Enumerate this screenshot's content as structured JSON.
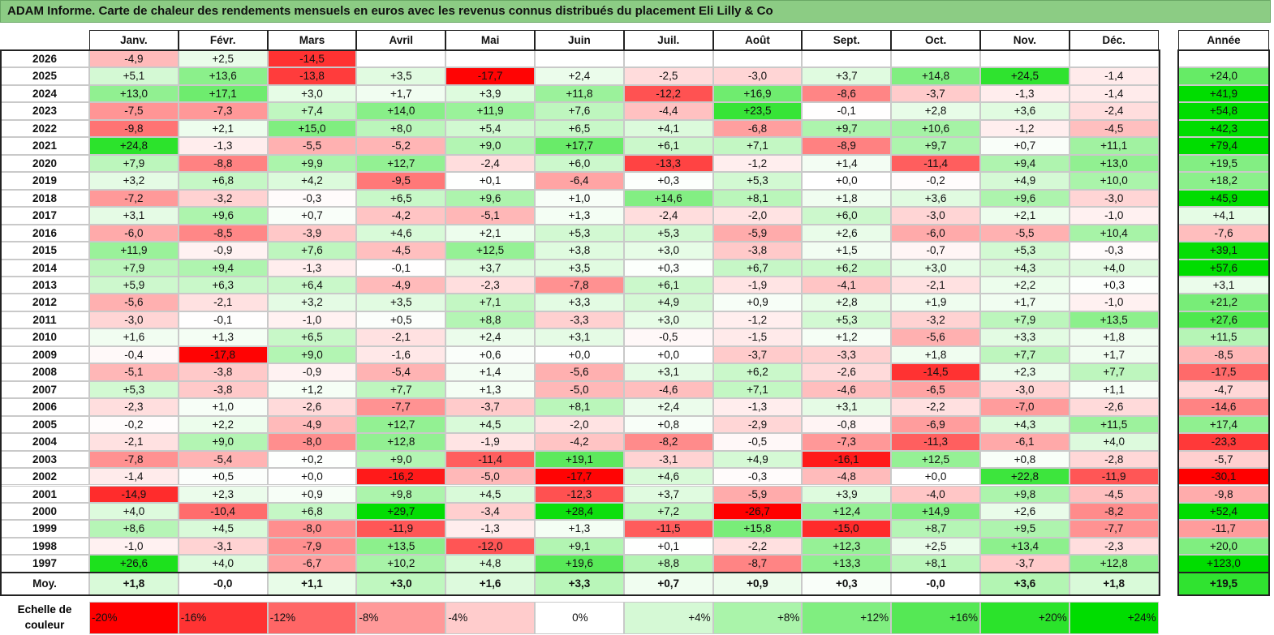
{
  "title": "ADAM Informe. Carte de chaleur des rendements mensuels en euros avec les revenus connus distribués du placement Eli Lilly & Co",
  "chart_data": {
    "type": "heatmap",
    "title": "ADAM Informe. Carte de chaleur des rendements mensuels en euros avec les revenus connus distribués du placement Eli Lilly & Co",
    "months": [
      "Janv.",
      "Févr.",
      "Mars",
      "Avril",
      "Mai",
      "Juin",
      "Juil.",
      "Août",
      "Sept.",
      "Oct.",
      "Nov.",
      "Déc."
    ],
    "year_header": "Année",
    "rows": [
      {
        "year": "2026",
        "values": [
          "-4,9",
          "+2,5",
          "-14,5",
          "",
          "",
          "",
          "",
          "",
          "",
          "",
          "",
          ""
        ],
        "annual": ""
      },
      {
        "year": "2025",
        "values": [
          "+5,1",
          "+13,6",
          "-13,8",
          "+3,5",
          "-17,7",
          "+2,4",
          "-2,5",
          "-3,0",
          "+3,7",
          "+14,8",
          "+24,5",
          "-1,4"
        ],
        "annual": "+24,0"
      },
      {
        "year": "2024",
        "values": [
          "+13,0",
          "+17,1",
          "+3,0",
          "+1,7",
          "+3,9",
          "+11,8",
          "-12,2",
          "+16,9",
          "-8,6",
          "-3,7",
          "-1,3",
          "-1,4"
        ],
        "annual": "+41,9"
      },
      {
        "year": "2023",
        "values": [
          "-7,5",
          "-7,3",
          "+7,4",
          "+14,0",
          "+11,9",
          "+7,6",
          "-4,4",
          "+23,5",
          "-0,1",
          "+2,8",
          "+3,6",
          "-2,4"
        ],
        "annual": "+54,8"
      },
      {
        "year": "2022",
        "values": [
          "-9,8",
          "+2,1",
          "+15,0",
          "+8,0",
          "+5,4",
          "+6,5",
          "+4,1",
          "-6,8",
          "+9,7",
          "+10,6",
          "-1,2",
          "-4,5"
        ],
        "annual": "+42,3"
      },
      {
        "year": "2021",
        "values": [
          "+24,8",
          "-1,3",
          "-5,5",
          "-5,2",
          "+9,0",
          "+17,7",
          "+6,1",
          "+7,1",
          "-8,9",
          "+9,7",
          "+0,7",
          "+11,1"
        ],
        "annual": "+79,4"
      },
      {
        "year": "2020",
        "values": [
          "+7,9",
          "-8,8",
          "+9,9",
          "+12,7",
          "-2,4",
          "+6,0",
          "-13,3",
          "-1,2",
          "+1,4",
          "-11,4",
          "+9,4",
          "+13,0"
        ],
        "annual": "+19,5"
      },
      {
        "year": "2019",
        "values": [
          "+3,2",
          "+6,8",
          "+4,2",
          "-9,5",
          "+0,1",
          "-6,4",
          "+0,3",
          "+5,3",
          "+0,0",
          "-0,2",
          "+4,9",
          "+10,0"
        ],
        "annual": "+18,2"
      },
      {
        "year": "2018",
        "values": [
          "-7,2",
          "-3,2",
          "-0,3",
          "+6,5",
          "+9,6",
          "+1,0",
          "+14,6",
          "+8,1",
          "+1,8",
          "+3,6",
          "+9,6",
          "-3,0"
        ],
        "annual": "+45,9"
      },
      {
        "year": "2017",
        "values": [
          "+3,1",
          "+9,6",
          "+0,7",
          "-4,2",
          "-5,1",
          "+1,3",
          "-2,4",
          "-2,0",
          "+6,0",
          "-3,0",
          "+2,1",
          "-1,0"
        ],
        "annual": "+4,1"
      },
      {
        "year": "2016",
        "values": [
          "-6,0",
          "-8,5",
          "-3,9",
          "+4,6",
          "+2,1",
          "+5,3",
          "+5,3",
          "-5,9",
          "+2,6",
          "-6,0",
          "-5,5",
          "+10,4"
        ],
        "annual": "-7,6"
      },
      {
        "year": "2015",
        "values": [
          "+11,9",
          "-0,9",
          "+7,6",
          "-4,5",
          "+12,5",
          "+3,8",
          "+3,0",
          "-3,8",
          "+1,5",
          "-0,7",
          "+5,3",
          "-0,3"
        ],
        "annual": "+39,1"
      },
      {
        "year": "2014",
        "values": [
          "+7,9",
          "+9,4",
          "-1,3",
          "-0,1",
          "+3,7",
          "+3,5",
          "+0,3",
          "+6,7",
          "+6,2",
          "+3,0",
          "+4,3",
          "+4,0"
        ],
        "annual": "+57,6"
      },
      {
        "year": "2013",
        "values": [
          "+5,9",
          "+6,3",
          "+6,4",
          "-4,9",
          "-2,3",
          "-7,8",
          "+6,1",
          "-1,9",
          "-4,1",
          "-2,1",
          "+2,2",
          "+0,3"
        ],
        "annual": "+3,1"
      },
      {
        "year": "2012",
        "values": [
          "-5,6",
          "-2,1",
          "+3,2",
          "+3,5",
          "+7,1",
          "+3,3",
          "+4,9",
          "+0,9",
          "+2,8",
          "+1,9",
          "+1,7",
          "-1,0"
        ],
        "annual": "+21,2"
      },
      {
        "year": "2011",
        "values": [
          "-3,0",
          "-0,1",
          "-1,0",
          "+0,5",
          "+8,8",
          "-3,3",
          "+3,0",
          "-1,2",
          "+5,3",
          "-3,2",
          "+7,9",
          "+13,5"
        ],
        "annual": "+27,6"
      },
      {
        "year": "2010",
        "values": [
          "+1,6",
          "+1,3",
          "+6,5",
          "-2,1",
          "+2,4",
          "+3,1",
          "-0,5",
          "-1,5",
          "+1,2",
          "-5,6",
          "+3,3",
          "+1,8"
        ],
        "annual": "+11,5"
      },
      {
        "year": "2009",
        "values": [
          "-0,4",
          "-17,8",
          "+9,0",
          "-1,6",
          "+0,6",
          "+0,0",
          "+0,0",
          "-3,7",
          "-3,3",
          "+1,8",
          "+7,7",
          "+1,7"
        ],
        "annual": "-8,5"
      },
      {
        "year": "2008",
        "values": [
          "-5,1",
          "-3,8",
          "-0,9",
          "-5,4",
          "+1,4",
          "-5,6",
          "+3,1",
          "+6,2",
          "-2,6",
          "-14,5",
          "+2,3",
          "+7,7"
        ],
        "annual": "-17,5"
      },
      {
        "year": "2007",
        "values": [
          "+5,3",
          "-3,8",
          "+1,2",
          "+7,7",
          "+1,3",
          "-5,0",
          "-4,6",
          "+7,1",
          "-4,6",
          "-6,5",
          "-3,0",
          "+1,1"
        ],
        "annual": "-4,7"
      },
      {
        "year": "2006",
        "values": [
          "-2,3",
          "+1,0",
          "-2,6",
          "-7,7",
          "-3,7",
          "+8,1",
          "+2,4",
          "-1,3",
          "+3,1",
          "-2,2",
          "-7,0",
          "-2,6"
        ],
        "annual": "-14,6"
      },
      {
        "year": "2005",
        "values": [
          "-0,2",
          "+2,2",
          "-4,9",
          "+12,7",
          "+4,5",
          "-2,0",
          "+0,8",
          "-2,9",
          "-0,8",
          "-6,9",
          "+4,3",
          "+11,5"
        ],
        "annual": "+17,4"
      },
      {
        "year": "2004",
        "values": [
          "-2,1",
          "+9,0",
          "-8,0",
          "+12,8",
          "-1,9",
          "-4,2",
          "-8,2",
          "-0,5",
          "-7,3",
          "-11,3",
          "-6,1",
          "+4,0"
        ],
        "annual": "-23,3"
      },
      {
        "year": "2003",
        "values": [
          "-7,8",
          "-5,4",
          "+0,2",
          "+9,0",
          "-11,4",
          "+19,1",
          "-3,1",
          "+4,9",
          "-16,1",
          "+12,5",
          "+0,8",
          "-2,8"
        ],
        "annual": "-5,7"
      },
      {
        "year": "2002",
        "values": [
          "-1,4",
          "+0,5",
          "+0,0",
          "-16,2",
          "-5,0",
          "-17,7",
          "+4,6",
          "-0,3",
          "-4,8",
          "+0,0",
          "+22,8",
          "-11,9"
        ],
        "annual": "-30,1"
      },
      {
        "year": "2001",
        "values": [
          "-14,9",
          "+2,3",
          "+0,9",
          "+9,8",
          "+4,5",
          "-12,3",
          "+3,7",
          "-5,9",
          "+3,9",
          "-4,0",
          "+9,8",
          "-4,5"
        ],
        "annual": "-9,8"
      },
      {
        "year": "2000",
        "values": [
          "+4,0",
          "-10,4",
          "+6,8",
          "+29,7",
          "-3,4",
          "+28,4",
          "+7,2",
          "-26,7",
          "+12,4",
          "+14,9",
          "+2,6",
          "-8,2"
        ],
        "annual": "+52,4"
      },
      {
        "year": "1999",
        "values": [
          "+8,6",
          "+4,5",
          "-8,0",
          "-11,9",
          "-1,3",
          "+1,3",
          "-11,5",
          "+15,8",
          "-15,0",
          "+8,7",
          "+9,5",
          "-7,7"
        ],
        "annual": "-11,7"
      },
      {
        "year": "1998",
        "values": [
          "-1,0",
          "-3,1",
          "-7,9",
          "+13,5",
          "-12,0",
          "+9,1",
          "+0,1",
          "-2,2",
          "+12,3",
          "+2,5",
          "+13,4",
          "-2,3"
        ],
        "annual": "+20,0"
      },
      {
        "year": "1997",
        "values": [
          "+26,6",
          "+4,0",
          "-6,7",
          "+10,2",
          "+4,8",
          "+19,6",
          "+8,8",
          "-8,7",
          "+13,3",
          "+8,1",
          "-3,7",
          "+12,8"
        ],
        "annual": "+123,0"
      }
    ],
    "average": {
      "label": "Moy.",
      "values": [
        "+1,8",
        "-0,0",
        "+1,1",
        "+3,0",
        "+1,6",
        "+3,3",
        "+0,7",
        "+0,9",
        "+0,3",
        "-0,0",
        "+3,6",
        "+1,8"
      ],
      "annual": "+19,5"
    },
    "color_scale": {
      "label_line1": "Echelle de",
      "label_line2": "couleur",
      "steps": [
        "-20%",
        "-16%",
        "-12%",
        "-8%",
        "-4%",
        "0%",
        "+4%",
        "+8%",
        "+12%",
        "+16%",
        "+20%",
        "+24%"
      ],
      "negative_color": "#ff0000",
      "neutral_color": "#ffffff",
      "positive_color": "#00dd00"
    }
  }
}
